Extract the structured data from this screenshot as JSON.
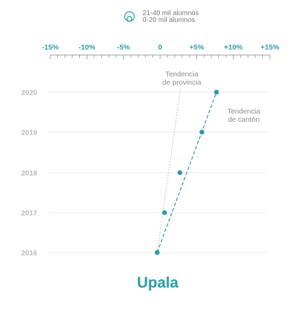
{
  "legend": {
    "items": [
      "21-40 mil alumnos",
      "0-20 mil alumnos"
    ]
  },
  "chart_data": {
    "type": "scatter",
    "title": "Upala",
    "x_ticks": [
      "-15%",
      "-10%",
      "-5%",
      "0",
      "+5%",
      "+10%",
      "+15%"
    ],
    "xlim": [
      -15,
      15
    ],
    "y_categories": [
      "2020",
      "2019",
      "2018",
      "2017",
      "2016"
    ],
    "series": [
      {
        "name": "",
        "points": [
          {
            "year": "2016",
            "x": -0.4
          },
          {
            "year": "2017",
            "x": 0.6
          },
          {
            "year": "2018",
            "x": 2.7
          },
          {
            "year": "2019",
            "x": 5.7
          },
          {
            "year": "2020",
            "x": 7.7
          }
        ]
      }
    ],
    "trend_lines": [
      {
        "label": [
          "Tendencia",
          "de provincia"
        ],
        "x_start": -0.4,
        "x_end": 2.8,
        "style": "dotted",
        "color": "#bbbbbb"
      },
      {
        "label": [
          "Tendencia",
          "de cantón"
        ],
        "x_start": -0.4,
        "x_end": 7.7,
        "style": "dashed",
        "color": "#2a9ba8"
      }
    ],
    "grid": true
  },
  "colors": {
    "accent": "#2a9ba8",
    "grid": "#e8e8e8",
    "axis": "#9a9a9a",
    "muted": "#b9b9b9"
  }
}
